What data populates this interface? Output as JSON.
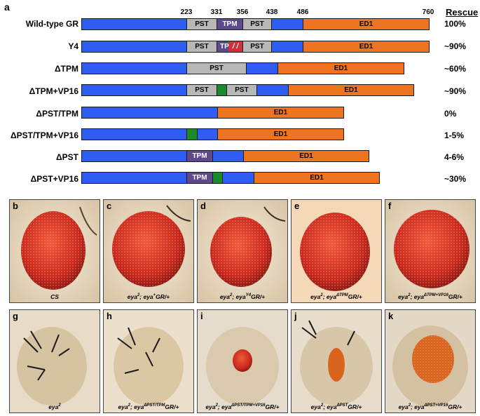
{
  "panel_a": {
    "letter": "a",
    "positions": [
      "223",
      "331",
      "356",
      "438",
      "486",
      "760"
    ],
    "rescue_header": "Rescue",
    "rows": [
      {
        "label": "Wild-type GR",
        "rescue": "100%",
        "segs": [
          {
            "t": ""
          },
          {
            "t": "PST"
          },
          {
            "t": "TPM"
          },
          {
            "t": "PST"
          },
          {
            "t": ""
          },
          {
            "t": "ED1"
          }
        ]
      },
      {
        "label": "Y4",
        "rescue": "~90%",
        "segs": [
          {
            "t": ""
          },
          {
            "t": "PST"
          },
          {
            "t": "TP"
          },
          {
            "t": "PST"
          },
          {
            "t": ""
          },
          {
            "t": "ED1"
          }
        ]
      },
      {
        "label": "ΔTPM",
        "rescue": "~60%",
        "segs": [
          {
            "t": ""
          },
          {
            "t": "PST"
          },
          {
            "t": ""
          },
          {
            "t": "ED1"
          }
        ]
      },
      {
        "label": "ΔTPM+VP16",
        "rescue": "~90%",
        "segs": [
          {
            "t": ""
          },
          {
            "t": "PST"
          },
          {
            "t": ""
          },
          {
            "t": "PST"
          },
          {
            "t": ""
          },
          {
            "t": "ED1"
          }
        ]
      },
      {
        "label": "ΔPST/TPM",
        "rescue": "0%",
        "segs": [
          {
            "t": ""
          },
          {
            "t": "ED1"
          }
        ]
      },
      {
        "label": "ΔPST/TPM+VP16",
        "rescue": "1-5%",
        "segs": [
          {
            "t": ""
          },
          {
            "t": ""
          },
          {
            "t": ""
          },
          {
            "t": "ED1"
          }
        ]
      },
      {
        "label": "ΔPST",
        "rescue": "4-6%",
        "segs": [
          {
            "t": ""
          },
          {
            "t": "TPM"
          },
          {
            "t": ""
          },
          {
            "t": "ED1"
          }
        ]
      },
      {
        "label": "ΔPST+VP16",
        "rescue": "~30%",
        "segs": [
          {
            "t": ""
          },
          {
            "t": "TPM"
          },
          {
            "t": ""
          },
          {
            "t": ""
          },
          {
            "t": "ED1"
          }
        ]
      }
    ]
  },
  "photos": [
    {
      "letter": "b",
      "caption": "CS"
    },
    {
      "letter": "c",
      "caption_main": "eya",
      "caption_sup1": "2",
      "caption_mid": "; eya",
      "caption_sup2": "+",
      "caption_end": "GR/+"
    },
    {
      "letter": "d",
      "caption_main": "eya",
      "caption_sup1": "2",
      "caption_mid": "; eya",
      "caption_sup2": "Y4",
      "caption_end": "GR/+"
    },
    {
      "letter": "e",
      "caption_main": "eya",
      "caption_sup1": "2",
      "caption_mid": "; eya",
      "caption_sup2": "ΔTPM",
      "caption_end": "GR/+"
    },
    {
      "letter": "f",
      "caption_main": "eya",
      "caption_sup1": "2",
      "caption_mid": "; eya",
      "caption_sup2": "ΔTPM+VP16",
      "caption_end": "GR/+"
    },
    {
      "letter": "g",
      "caption_main": "eya",
      "caption_sup1": "2",
      "caption_mid": "",
      "caption_sup2": "",
      "caption_end": ""
    },
    {
      "letter": "h",
      "caption_main": "eya",
      "caption_sup1": "2",
      "caption_mid": "; eya",
      "caption_sup2": "ΔPST/TPM",
      "caption_end": "GR/+"
    },
    {
      "letter": "i",
      "caption_main": "eya",
      "caption_sup1": "2",
      "caption_mid": "; eya",
      "caption_sup2": "ΔPST/TPM+VP16",
      "caption_end": "GR/+"
    },
    {
      "letter": "j",
      "caption_main": "eya",
      "caption_sup1": "2",
      "caption_mid": "; eya",
      "caption_sup2": "ΔPST",
      "caption_end": "GR/+"
    },
    {
      "letter": "k",
      "caption_main": "eya",
      "caption_sup1": "2",
      "caption_mid": "; eya",
      "caption_sup2": "ΔPST+VP16",
      "caption_end": "GR/+"
    }
  ]
}
